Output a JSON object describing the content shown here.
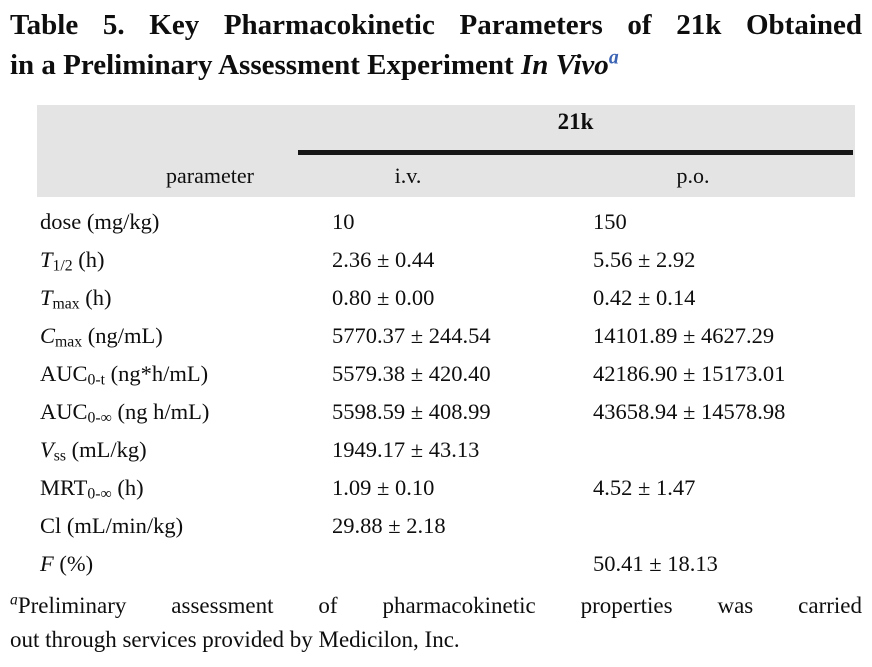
{
  "title": {
    "line1": "Table 5. Key Pharmacokinetic Parameters of 21k Obtained",
    "line2_prefix": "in a Preliminary Assessment Experiment ",
    "line2_italic": "In Vivo",
    "superscript": "a"
  },
  "table": {
    "group_header": "21k",
    "columns": {
      "parameter": "parameter",
      "iv": "i.v.",
      "po": "p.o."
    },
    "rows": [
      {
        "main": "dose",
        "italic": false,
        "sub": "",
        "rest": " (mg/kg)",
        "iv": "10",
        "po": "150"
      },
      {
        "main": "T",
        "italic": true,
        "sub": "1/2",
        "rest": " (h)",
        "iv": "2.36 ± 0.44",
        "po": "5.56 ± 2.92"
      },
      {
        "main": "T",
        "italic": true,
        "sub": "max",
        "rest": " (h)",
        "iv": "0.80 ± 0.00",
        "po": "0.42 ± 0.14"
      },
      {
        "main": "C",
        "italic": true,
        "sub": "max",
        "rest": " (ng/mL)",
        "iv": "5770.37 ± 244.54",
        "po": "14101.89 ± 4627.29"
      },
      {
        "main": "AUC",
        "italic": false,
        "sub": "0-t",
        "rest": " (ng*h/mL)",
        "iv": "5579.38 ± 420.40",
        "po": "42186.90 ± 15173.01"
      },
      {
        "main": "AUC",
        "italic": false,
        "sub": "0-∞",
        "rest": " (ng h/mL)",
        "iv": "5598.59 ± 408.99",
        "po": "43658.94 ± 14578.98"
      },
      {
        "main": "V",
        "italic": true,
        "sub": "ss",
        "rest": " (mL/kg)",
        "iv": "1949.17 ± 43.13",
        "po": ""
      },
      {
        "main": "MRT",
        "italic": false,
        "sub": "0-∞",
        "rest": " (h)",
        "iv": "1.09 ± 0.10",
        "po": "4.52 ± 1.47"
      },
      {
        "main": "Cl",
        "italic": false,
        "sub": "",
        "rest": " (mL/min/kg)",
        "iv": "29.88 ± 2.18",
        "po": ""
      },
      {
        "main": "F",
        "italic": true,
        "sub": "",
        "rest": " (%)",
        "iv": "",
        "po": "50.41 ± 18.13"
      }
    ]
  },
  "footnote": {
    "marker": "a",
    "line1": "Preliminary assessment of pharmacokinetic properties was carried",
    "line2": "out through services provided by Medicilon, Inc."
  },
  "colors": {
    "header_bg": "#e4e4e4",
    "superscript_blue": "#3c64b4",
    "text": "#0e0e0e"
  }
}
